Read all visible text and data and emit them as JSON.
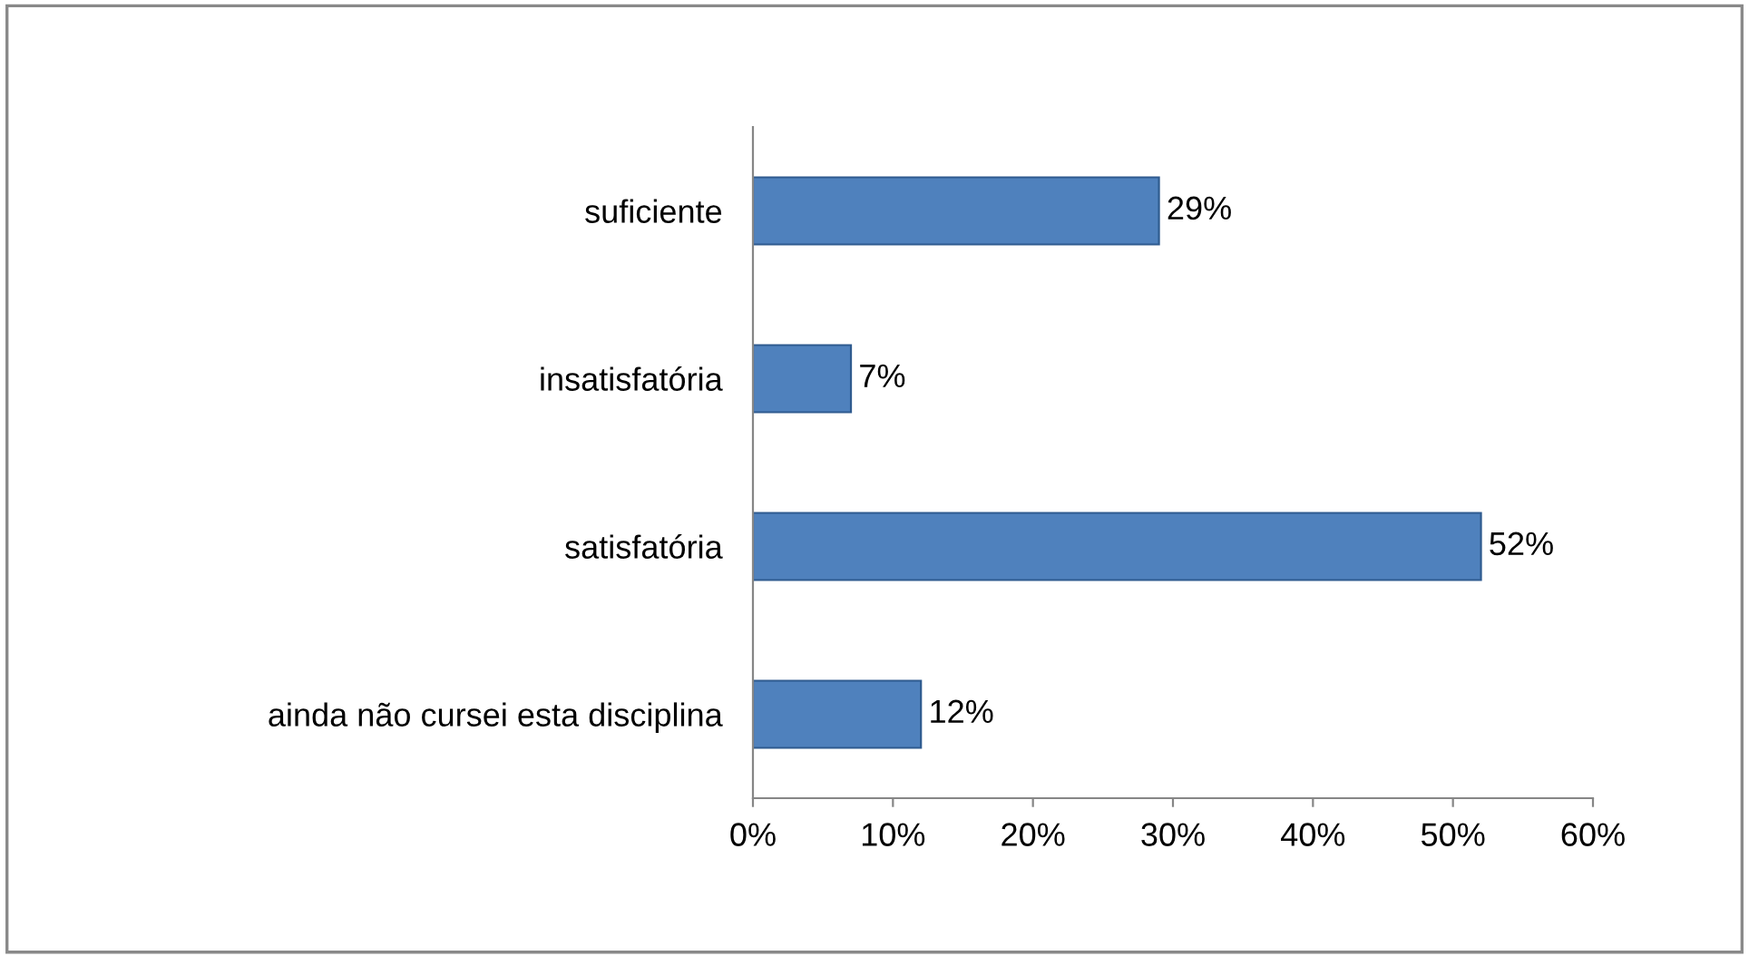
{
  "chart_data": {
    "type": "bar",
    "orientation": "horizontal",
    "categories": [
      "suficiente",
      "insatisfatória",
      "satisfatória",
      "ainda não cursei esta disciplina"
    ],
    "values": [
      29,
      7,
      52,
      12
    ],
    "value_labels": [
      "29%",
      "7%",
      "52%",
      "12%"
    ],
    "color": "#4f81bd",
    "xlim": [
      0,
      60
    ],
    "xticks": [
      {
        "value": 0,
        "label": "0%"
      },
      {
        "value": 10,
        "label": "10%"
      },
      {
        "value": 20,
        "label": "20%"
      },
      {
        "value": 30,
        "label": "30%"
      },
      {
        "value": 40,
        "label": "40%"
      },
      {
        "value": 50,
        "label": "50%"
      },
      {
        "value": 60,
        "label": "60%"
      }
    ],
    "grid": false
  }
}
